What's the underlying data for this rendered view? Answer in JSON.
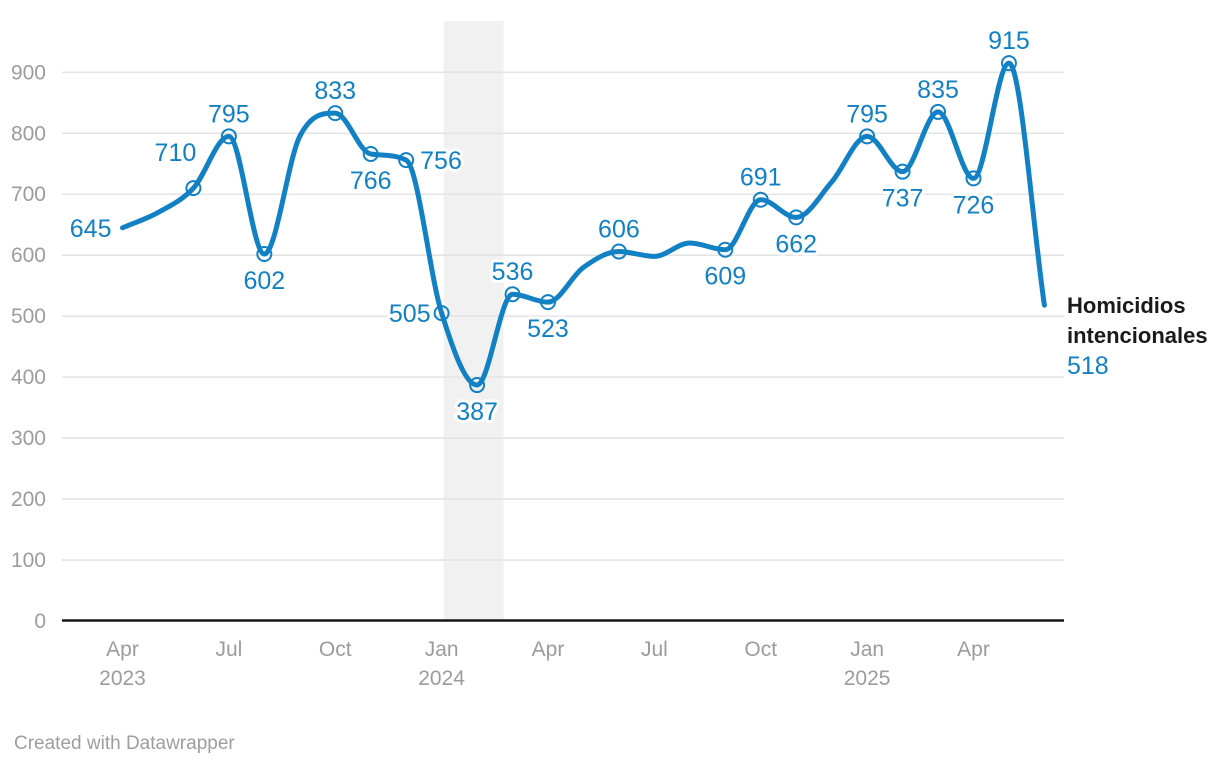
{
  "chart_data": {
    "type": "line",
    "series_name": "Homicidios intencionales",
    "x_range": [
      "Apr 2023",
      "Jun 2025"
    ],
    "points": [
      {
        "x": "Apr 2023",
        "y": 645,
        "label": "645",
        "label_pos": "left",
        "marker": false
      },
      {
        "x": "May 2023",
        "y": 670,
        "approx": true
      },
      {
        "x": "Jun 2023",
        "y": 710,
        "label": "710",
        "label_pos": "above-left",
        "marker": true
      },
      {
        "x": "Jul 2023",
        "y": 795,
        "label": "795",
        "label_pos": "above",
        "marker": true
      },
      {
        "x": "Aug 2023",
        "y": 602,
        "label": "602",
        "label_pos": "below",
        "marker": true
      },
      {
        "x": "Sep 2023",
        "y": 795,
        "approx": true
      },
      {
        "x": "Oct 2023",
        "y": 833,
        "label": "833",
        "label_pos": "above",
        "marker": true
      },
      {
        "x": "Nov 2023",
        "y": 766,
        "label": "766",
        "label_pos": "below",
        "marker": true
      },
      {
        "x": "Dec 2023",
        "y": 756,
        "label": "756",
        "label_pos": "right",
        "marker": true
      },
      {
        "x": "Jan 2024",
        "y": 505,
        "label": "505",
        "label_pos": "left",
        "marker": true
      },
      {
        "x": "Feb 2024",
        "y": 387,
        "label": "387",
        "label_pos": "below",
        "marker": true
      },
      {
        "x": "Mar 2024",
        "y": 536,
        "label": "536",
        "label_pos": "above",
        "marker": true
      },
      {
        "x": "Apr 2024",
        "y": 523,
        "label": "523",
        "label_pos": "below",
        "marker": true
      },
      {
        "x": "May 2024",
        "y": 580,
        "approx": true
      },
      {
        "x": "Jun 2024",
        "y": 606,
        "label": "606",
        "label_pos": "above",
        "marker": true
      },
      {
        "x": "Jul 2024",
        "y": 598,
        "approx": true
      },
      {
        "x": "Aug 2024",
        "y": 620,
        "approx": true
      },
      {
        "x": "Sep 2024",
        "y": 609,
        "label": "609",
        "label_pos": "below",
        "marker": true
      },
      {
        "x": "Oct 2024",
        "y": 691,
        "label": "691",
        "label_pos": "above",
        "marker": true
      },
      {
        "x": "Nov 2024",
        "y": 662,
        "label": "662",
        "label_pos": "below",
        "marker": true
      },
      {
        "x": "Dec 2024",
        "y": 720,
        "approx": true
      },
      {
        "x": "Jan 2025",
        "y": 795,
        "label": "795",
        "label_pos": "above",
        "marker": true
      },
      {
        "x": "Feb 2025",
        "y": 737,
        "label": "737",
        "label_pos": "below",
        "marker": true
      },
      {
        "x": "Mar 2025",
        "y": 835,
        "label": "835",
        "label_pos": "above",
        "marker": true
      },
      {
        "x": "Apr 2025",
        "y": 726,
        "label": "726",
        "label_pos": "below",
        "marker": true
      },
      {
        "x": "May 2025",
        "y": 915,
        "label": "915",
        "label_pos": "above",
        "marker": true
      },
      {
        "x": "Jun 2025",
        "y": 518,
        "label": "518",
        "label_pos": "annotation",
        "marker": false
      }
    ],
    "y_ticks": [
      0,
      100,
      200,
      300,
      400,
      500,
      600,
      700,
      800,
      900
    ],
    "ylim": [
      0,
      985
    ],
    "x_ticks": [
      {
        "month": "Apr 2023",
        "line1": "Apr",
        "line2": "2023"
      },
      {
        "month": "Jul 2023",
        "line1": "Jul"
      },
      {
        "month": "Oct 2023",
        "line1": "Oct"
      },
      {
        "month": "Jan 2024",
        "line1": "Jan",
        "line2": "2024"
      },
      {
        "month": "Apr 2024",
        "line1": "Apr"
      },
      {
        "month": "Jul 2024",
        "line1": "Jul"
      },
      {
        "month": "Oct 2024",
        "line1": "Oct"
      },
      {
        "month": "Jan 2025",
        "line1": "Jan",
        "line2": "2025"
      },
      {
        "month": "Apr 2025",
        "line1": "Apr"
      }
    ],
    "grid": true,
    "highlight_band": {
      "from": "Jan 2024",
      "to": "Feb 2024"
    },
    "legend_position": "right-of-line-end",
    "colors": {
      "line": "#1280c4",
      "point_labels": "#1280c4",
      "grid": "#e4e4e4",
      "band": "#f1f1f1",
      "axis": "#161616",
      "tick_labels": "#9c9c9c",
      "annotation_title": "#1a1a1a",
      "footer": "#9e9e9e"
    }
  },
  "annotation": {
    "series_label": "Homicidios intencionales",
    "latest_value": "518"
  },
  "footer": {
    "credit": "Created with Datawrapper"
  }
}
